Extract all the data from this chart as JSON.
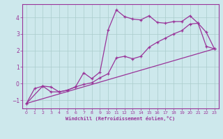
{
  "xlabel": "Windchill (Refroidissement éolien,°C)",
  "background_color": "#cde8ec",
  "grid_color": "#aacccc",
  "line_color": "#993399",
  "xlim": [
    -0.5,
    23.5
  ],
  "ylim": [
    -1.5,
    4.8
  ],
  "xticks": [
    0,
    1,
    2,
    3,
    4,
    5,
    6,
    7,
    8,
    9,
    10,
    11,
    12,
    13,
    14,
    15,
    16,
    17,
    18,
    19,
    20,
    21,
    22,
    23
  ],
  "yticks": [
    -1,
    0,
    1,
    2,
    3,
    4
  ],
  "curve1_x": [
    0,
    1,
    2,
    3,
    4,
    5,
    6,
    7,
    8,
    9,
    10,
    11,
    12,
    13,
    14,
    15,
    16,
    17,
    18,
    19,
    20,
    21,
    22,
    23
  ],
  "curve1_y": [
    -1.2,
    -0.3,
    -0.15,
    -0.2,
    -0.5,
    -0.4,
    -0.2,
    0.65,
    0.3,
    0.7,
    3.25,
    4.45,
    4.05,
    3.9,
    3.85,
    4.1,
    3.7,
    3.65,
    3.75,
    3.75,
    4.1,
    3.65,
    2.25,
    2.1
  ],
  "curve2_x": [
    0,
    2,
    3,
    4,
    5,
    6,
    7,
    8,
    9,
    10,
    11,
    12,
    13,
    14,
    15,
    16,
    17,
    18,
    19,
    20,
    21,
    22,
    23
  ],
  "curve2_y": [
    -1.2,
    -0.15,
    -0.5,
    -0.5,
    -0.4,
    -0.2,
    -0.05,
    0.05,
    0.35,
    0.6,
    1.55,
    1.65,
    1.5,
    1.65,
    2.2,
    2.5,
    2.75,
    3.0,
    3.2,
    3.6,
    3.65,
    3.1,
    2.1
  ],
  "curve3_x": [
    0,
    23
  ],
  "curve3_y": [
    -1.2,
    2.1
  ]
}
